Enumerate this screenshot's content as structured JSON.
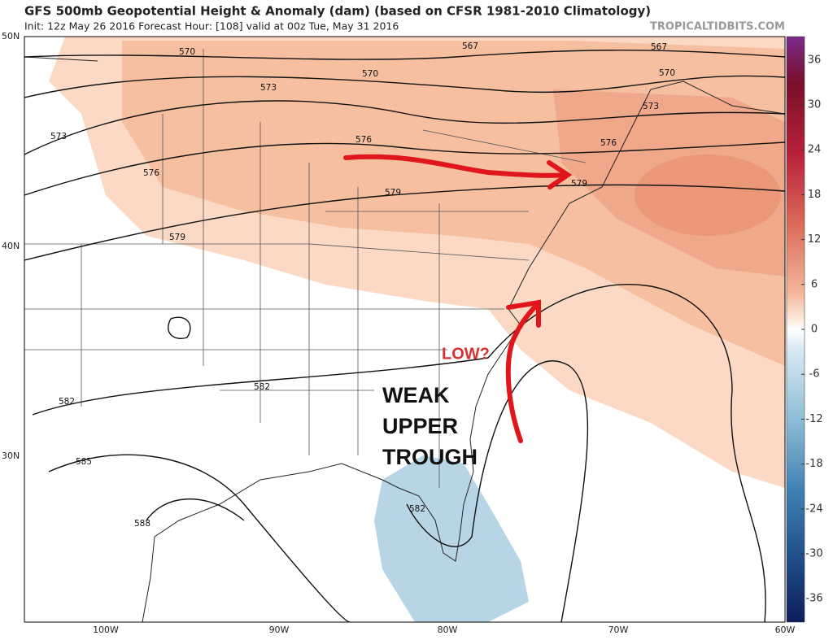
{
  "header": {
    "title": "GFS 500mb Geopotential Height & Anomaly (dam) (based on CFSR 1981-2010 Climatology)",
    "subtitle": "Init: 12z May 26 2016   Forecast Hour: [108]   valid at 00z Tue, May 31 2016",
    "watermark": "TROPICALTIDBITS.COM"
  },
  "map": {
    "latitude_labels": [
      "50N",
      "40N",
      "30N"
    ],
    "longitude_labels": [
      "100W",
      "90W",
      "80W",
      "70W",
      "60W"
    ],
    "contour_labels": [
      570,
      567,
      567,
      570,
      570,
      573,
      573,
      573,
      576,
      576,
      576,
      579,
      579,
      579,
      582,
      582,
      582,
      585,
      588
    ],
    "annotations": {
      "low": "LOW?",
      "trough": [
        "WEAK",
        "UPPER",
        "TROUGH"
      ]
    }
  },
  "colorbar": {
    "ticks": [
      36,
      30,
      24,
      18,
      12,
      6,
      0,
      -6,
      -12,
      -18,
      -24,
      -30,
      -36
    ]
  }
}
